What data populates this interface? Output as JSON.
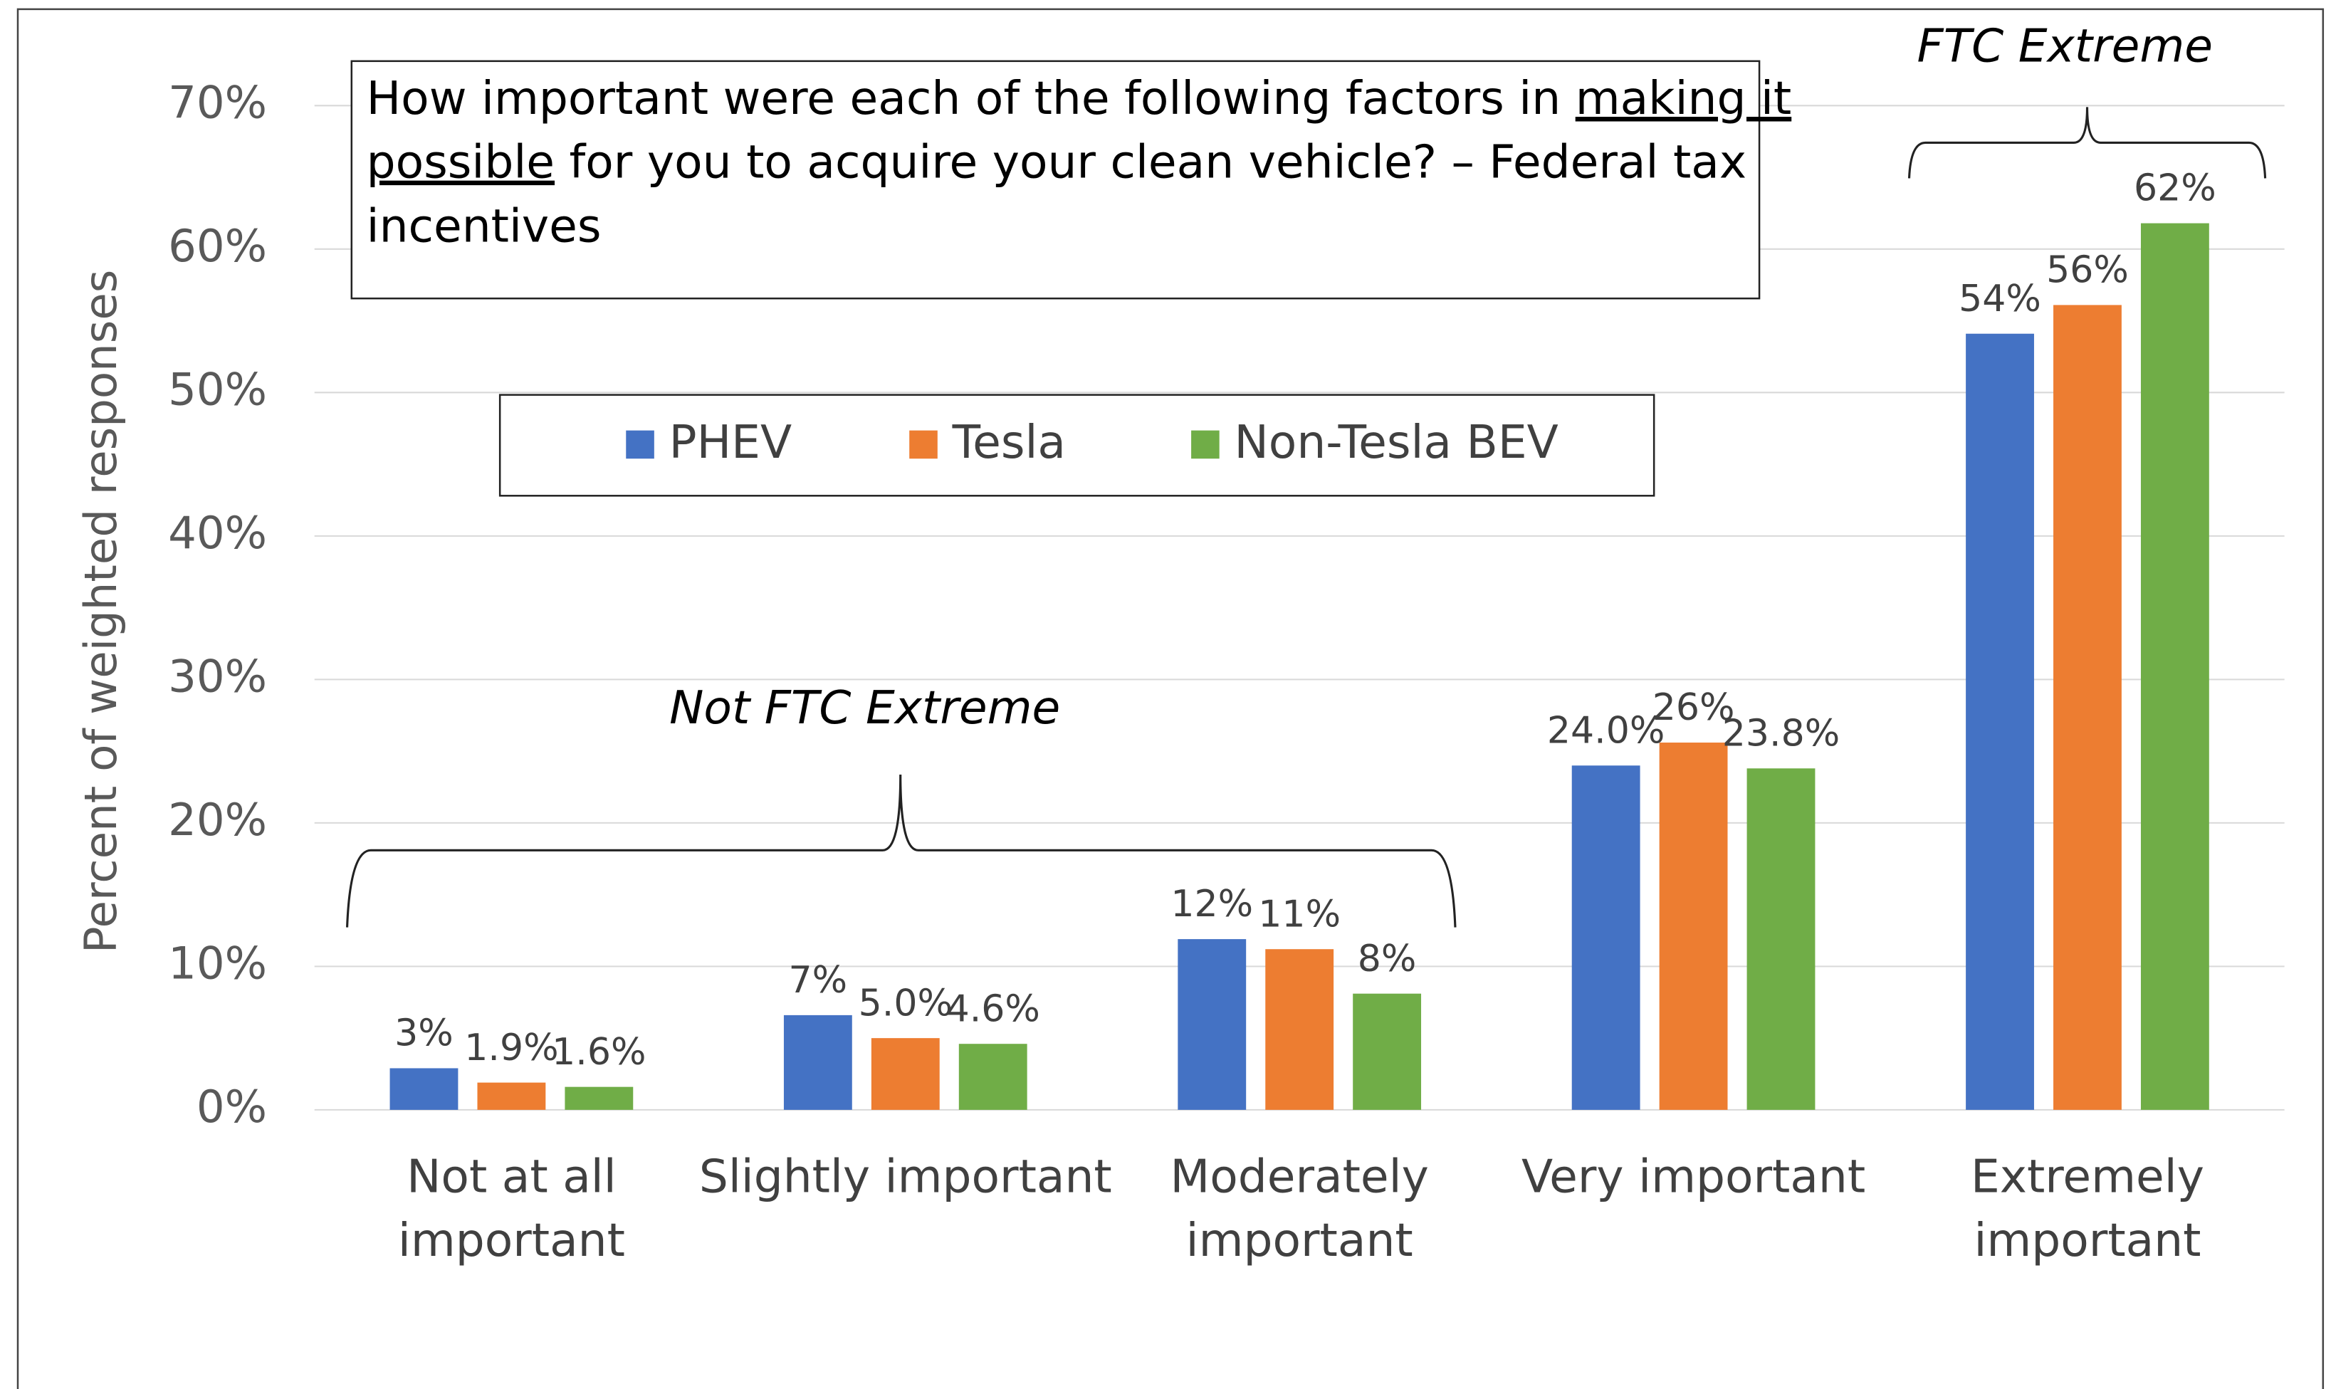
{
  "chart_data": {
    "type": "bar",
    "title_lines": [
      [
        {
          "text": "How important were each of the following factors in ",
          "underline": false
        },
        {
          "text": "making it",
          "underline": true
        }
      ],
      [
        {
          "text": "possible",
          "underline": true
        },
        {
          "text": " for you to acquire your clean vehicle? – Federal tax",
          "underline": false
        }
      ],
      [
        {
          "text": "incentives",
          "underline": false
        }
      ]
    ],
    "y_label": "Percent of weighted responses",
    "annotations": [
      "Not FTC Extreme",
      "FTC Extreme"
    ],
    "categories": [
      [
        "Not at all",
        "important"
      ],
      [
        "Slightly important"
      ],
      [
        "Moderately",
        "important"
      ],
      [
        "Very important"
      ],
      [
        "Extremely",
        "important"
      ]
    ],
    "series": [
      {
        "name": "PHEV",
        "color": "#4472c4",
        "values": [
          2.9,
          6.6,
          11.9,
          24.0,
          54.1
        ],
        "value_labels": [
          "3%",
          "7%",
          "12%",
          "24.0%",
          "54%"
        ]
      },
      {
        "name": "Tesla",
        "color": "#ed7d31",
        "values": [
          1.9,
          5.0,
          11.2,
          25.6,
          56.1
        ],
        "value_labels": [
          "1.9%",
          "5.0%",
          "11%",
          "26%",
          "56%"
        ]
      },
      {
        "name": "Non-Tesla BEV",
        "color": "#70ad47",
        "values": [
          1.6,
          4.6,
          8.1,
          23.8,
          61.8
        ],
        "value_labels": [
          "1.6%",
          "4.6%",
          "8%",
          "23.8%",
          "62%"
        ]
      }
    ],
    "ylim": [
      0,
      70
    ],
    "yticks": [
      {
        "value": 0,
        "label": "0%"
      },
      {
        "value": 10,
        "label": "10%"
      },
      {
        "value": 20,
        "label": "20%"
      },
      {
        "value": 30,
        "label": "30%"
      },
      {
        "value": 40,
        "label": "40%"
      },
      {
        "value": 50,
        "label": "50%"
      },
      {
        "value": 60,
        "label": "60%"
      },
      {
        "value": 70,
        "label": "70%"
      }
    ],
    "grid": true
  }
}
